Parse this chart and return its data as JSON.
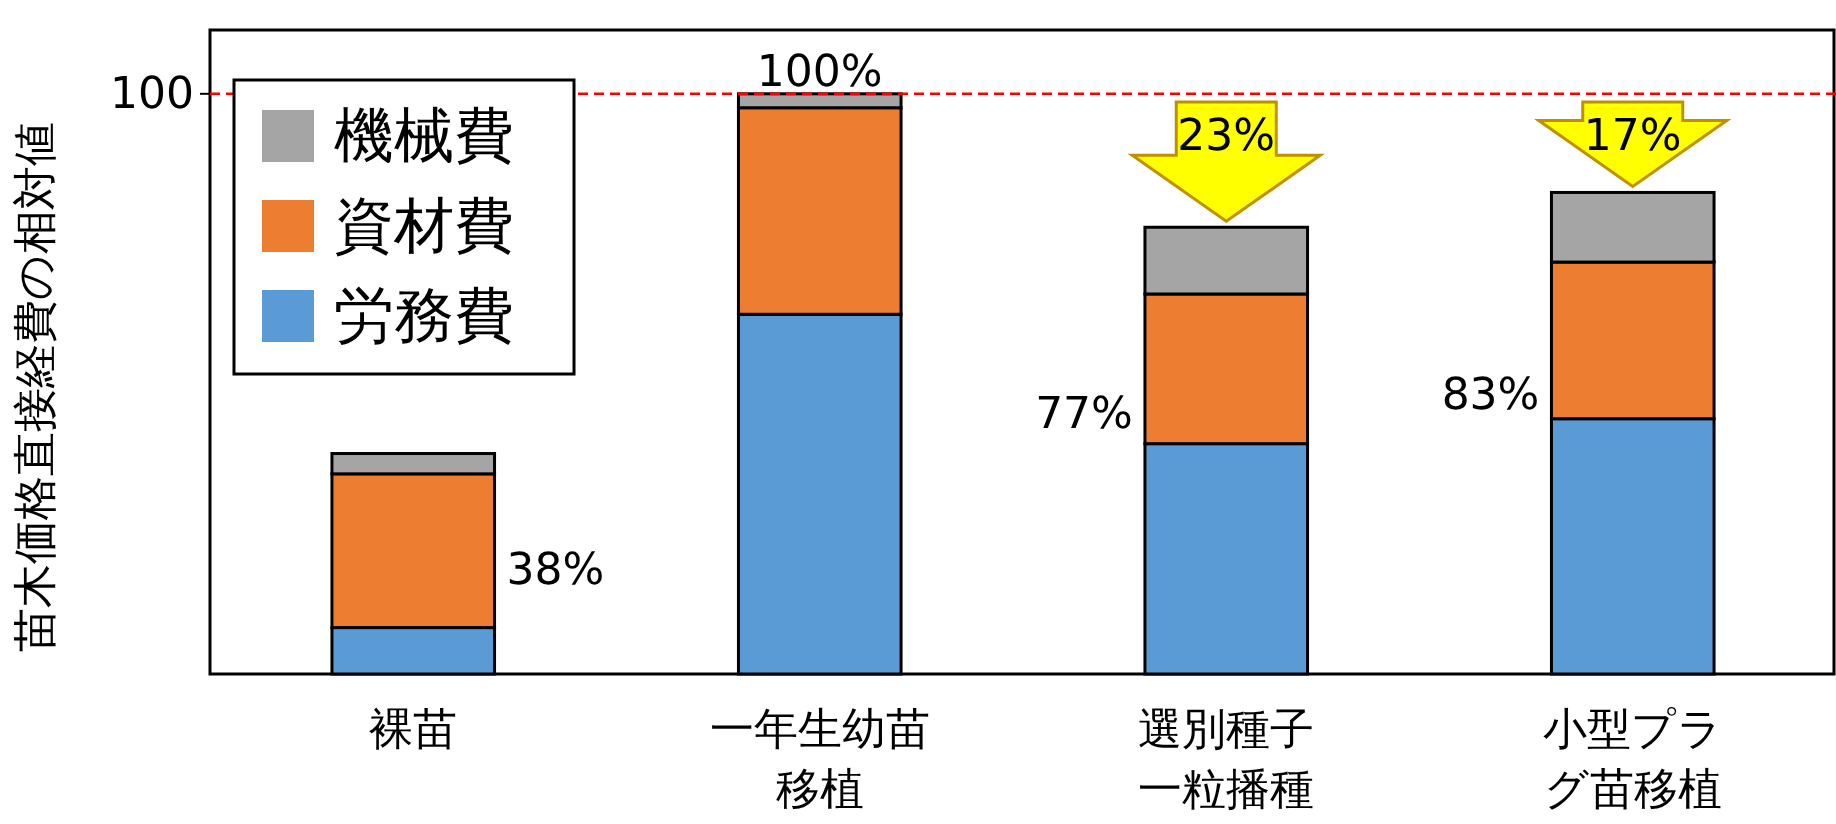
{
  "chart_data": {
    "type": "bar",
    "stacked": true,
    "ylabel": "苗木価格直接経費の相対値",
    "categories": [
      "裸苗",
      "一年生幼苗移植",
      "選別種子一粒播種",
      "小型プラグ苗移植"
    ],
    "series": [
      {
        "name": "労務費",
        "color": "#5b9bd5",
        "values": [
          8,
          62,
          39.7,
          44
        ]
      },
      {
        "name": "資材費",
        "color": "#ed7d31",
        "values": [
          26.5,
          35.6,
          25.8,
          27
        ]
      },
      {
        "name": "機械費",
        "color": "#a5a5a5",
        "values": [
          3.5,
          2.4,
          11.5,
          12
        ]
      }
    ],
    "totals": [
      "38%",
      "100%",
      "77%",
      "83%"
    ],
    "ylim": [
      0,
      111
    ],
    "yticks": [
      100
    ],
    "ref_lines": [
      {
        "axis": "y",
        "value": 100,
        "color": "#ff0000",
        "line_style": "dashed"
      }
    ],
    "annotations": [
      {
        "text": "23%",
        "x": "選別種子一粒播種",
        "y": 77
      },
      {
        "text": "17%",
        "x": "小型プラグ苗移植",
        "y": 83
      }
    ],
    "legend": "top left",
    "grid": false
  }
}
